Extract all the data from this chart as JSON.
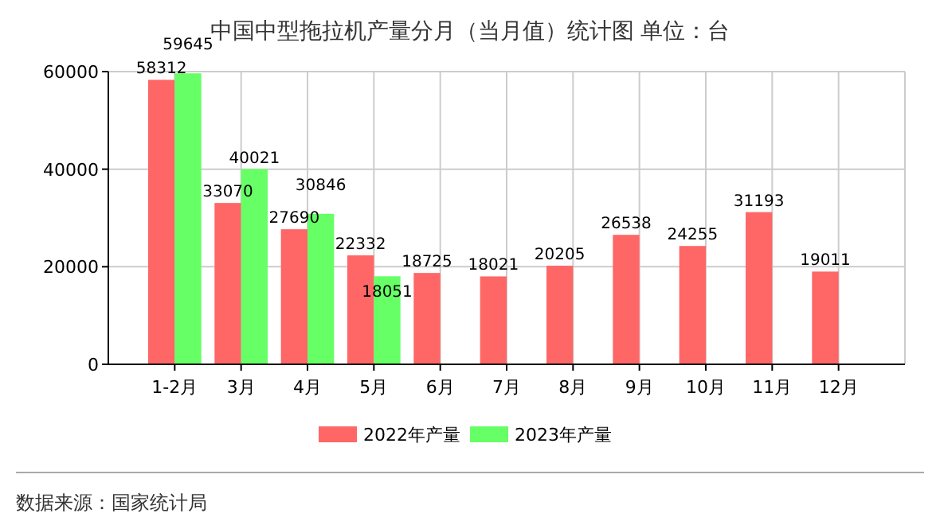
{
  "chart_data": {
    "type": "bar",
    "title": "中国中型拖拉机产量分月（当月值）统计图 单位：台",
    "categories": [
      "1-2月",
      "3月",
      "4月",
      "5月",
      "6月",
      "7月",
      "8月",
      "9月",
      "10月",
      "11月",
      "12月"
    ],
    "series": [
      {
        "name": "2022年产量",
        "color": "#ff6666",
        "values": [
          58312,
          33070,
          27690,
          22332,
          18725,
          18021,
          20205,
          26538,
          24255,
          31193,
          19011
        ]
      },
      {
        "name": "2023年产量",
        "color": "#66ff66",
        "values": [
          59645,
          40021,
          30846,
          18051,
          null,
          null,
          null,
          null,
          null,
          null,
          null
        ]
      }
    ],
    "ylim": [
      0,
      60000
    ],
    "yticks": [
      0,
      20000,
      40000,
      60000
    ],
    "grid": true,
    "legend": "bottom",
    "data_labels": true,
    "annotations": [
      "数据来源：国家统计局"
    ]
  }
}
